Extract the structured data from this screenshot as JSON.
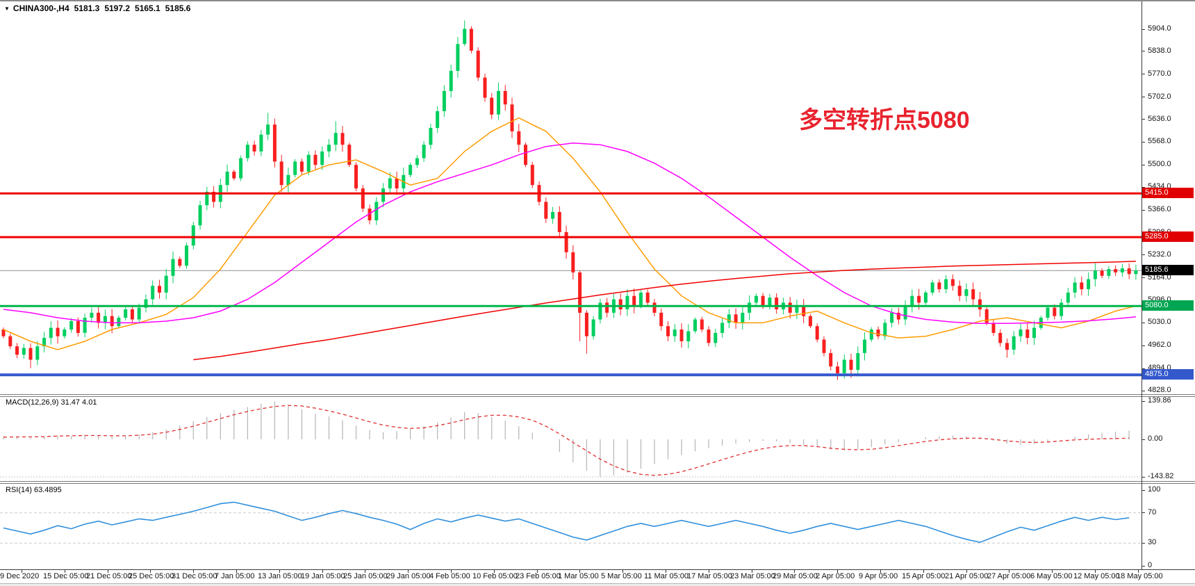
{
  "header": {
    "dropdown_icon": "▼",
    "symbol": "CHINA300-,H4",
    "open": "5181.3",
    "high": "5197.2",
    "low": "5165.1",
    "close": "5185.6"
  },
  "indicators": {
    "macd_label": "MACD(12,26,9) 31.47 4.01",
    "rsi_label": "RSI(14) 63.4895"
  },
  "annotation": {
    "text": "多空转折点5080",
    "color": "#e8232e"
  },
  "badges": [
    {
      "label": "5415.0",
      "price": 5415.0,
      "bg": "#e00000"
    },
    {
      "label": "5285.0",
      "price": 5285.0,
      "bg": "#e00000"
    },
    {
      "label": "5185.6",
      "price": 5185.6,
      "bg": "#000000"
    },
    {
      "label": "5080.0",
      "price": 5080.0,
      "bg": "#00a651"
    },
    {
      "label": "4875.0",
      "price": 4875.0,
      "bg": "#3358cc"
    }
  ],
  "colors": {
    "candle_up": "#00cf5f",
    "candle_down": "#f81f1f",
    "macd_histogram": "#b4b4b4",
    "macd_signal": "#e03030",
    "rsi_line": "#2f8fdd",
    "level_dashed": "#c9c9c9",
    "axis_text": "#111111"
  },
  "chart_data": {
    "type": "candlestick",
    "symbol": "CHINA300-",
    "timeframe": "H4",
    "title_ohlc": [
      5181.3,
      5197.2,
      5165.1,
      5185.6
    ],
    "current_bid": 5185.6,
    "price_axis": {
      "min": 4828,
      "max": 5904,
      "tick_labels": [
        "5904.0",
        "5838.0",
        "5770.0",
        "5702.0",
        "5636.0",
        "5568.0",
        "5500.0",
        "5434.0",
        "5366.0",
        "5298.0",
        "5232.0",
        "5164.0",
        "5096.0",
        "5030.0",
        "4962.0",
        "4894.0",
        "4828.0"
      ]
    },
    "time_axis_labels": [
      "9 Dec 2020",
      "15 Dec 05:00",
      "21 Dec 05:00",
      "25 Dec 05:00",
      "31 Dec 05:00",
      "7 Jan 05:00",
      "13 Jan 05:00",
      "19 Jan 05:00",
      "25 Jan 05:00",
      "29 Jan 05:00",
      "4 Feb 05:00",
      "10 Feb 05:00",
      "23 Feb 05:00",
      "1 Mar 05:00",
      "5 Mar 05:00",
      "11 Mar 05:00",
      "17 Mar 05:00",
      "23 Mar 05:00",
      "29 Mar 05:00",
      "2 Apr 05:00",
      "9 Apr 05:00",
      "15 Apr 05:00",
      "21 Apr 05:00",
      "27 Apr 05:00",
      "6 May 05:00",
      "12 May 05:00",
      "18 May 05:00"
    ],
    "horizontal_lines": [
      {
        "name": "bid-price-line",
        "price": 5185.6,
        "color": "#909090",
        "width": 1,
        "behind": true
      },
      {
        "name": "resistance-line-5415",
        "price": 5415.0,
        "color": "#ef0000",
        "width": 3,
        "behind": false
      },
      {
        "name": "resistance-line-5285",
        "price": 5285.0,
        "color": "#ef0000",
        "width": 3,
        "behind": false
      },
      {
        "name": "pivot-line-5080",
        "price": 5080.0,
        "color": "#00b64a",
        "width": 3,
        "behind": false
      },
      {
        "name": "support-line-4875",
        "price": 4875.0,
        "color": "#3358cc",
        "width": 4,
        "behind": false
      }
    ],
    "candles": {
      "count": 168,
      "first_open": 5010,
      "default_wick": 12,
      "closes": [
        4990,
        4960,
        4935,
        4955,
        4920,
        4960,
        4985,
        5015,
        4990,
        5010,
        5035,
        5000,
        5045,
        5060,
        5030,
        5050,
        5020,
        5045,
        5070,
        5040,
        5075,
        5100,
        5140,
        5120,
        5170,
        5220,
        5200,
        5260,
        5320,
        5380,
        5420,
        5390,
        5440,
        5480,
        5460,
        5520,
        5560,
        5540,
        5590,
        5620,
        5510,
        5440,
        5470,
        5510,
        5480,
        5530,
        5500,
        5540,
        5560,
        5595,
        5560,
        5500,
        5430,
        5370,
        5335,
        5390,
        5430,
        5460,
        5430,
        5470,
        5500,
        5520,
        5560,
        5610,
        5660,
        5720,
        5780,
        5860,
        5905,
        5840,
        5760,
        5700,
        5650,
        5720,
        5680,
        5600,
        5560,
        5500,
        5440,
        5390,
        5340,
        5360,
        5300,
        5240,
        5180,
        5060,
        4990,
        5040,
        5090,
        5060,
        5100,
        5070,
        5110,
        5080,
        5120,
        5090,
        5060,
        5020,
        4990,
        5010,
        4975,
        5005,
        5040,
        5010,
        4970,
        5000,
        5030,
        5055,
        5030,
        5060,
        5090,
        5110,
        5080,
        5105,
        5070,
        5090,
        5060,
        5080,
        5050,
        5020,
        4980,
        4940,
        4900,
        4880,
        4920,
        4890,
        4940,
        4980,
        5010,
        4990,
        5030,
        5060,
        5040,
        5080,
        5110,
        5090,
        5120,
        5150,
        5130,
        5160,
        5140,
        5110,
        5130,
        5100,
        5070,
        5030,
        5000,
        4970,
        4950,
        4990,
        5010,
        4985,
        5015,
        5045,
        5075,
        5050,
        5090,
        5120,
        5150,
        5130,
        5160,
        5185,
        5170,
        5190,
        5180,
        5192,
        5175,
        5186
      ],
      "spike_highs": {
        "39": 5655,
        "49": 5630,
        "68": 5930,
        "73": 5745,
        "165": 5197
      },
      "spike_lows": {
        "4": 4895,
        "85": 4975,
        "86": 4938,
        "123": 4860,
        "125": 4866,
        "148": 4926
      }
    },
    "moving_averages": [
      {
        "name": "ma-fast-orange",
        "color": "#ff9c00",
        "start_index": 0,
        "step": 4,
        "values": [
          5010,
          4975,
          4950,
          4975,
          5010,
          5030,
          5055,
          5105,
          5190,
          5300,
          5410,
          5470,
          5500,
          5515,
          5480,
          5440,
          5460,
          5540,
          5600,
          5640,
          5600,
          5520,
          5420,
          5300,
          5190,
          5110,
          5060,
          5030,
          5030,
          5050,
          5065,
          5030,
          5000,
          4985,
          4990,
          5010,
          5035,
          5045,
          5030,
          5015,
          5035,
          5065,
          5080
        ]
      },
      {
        "name": "ma-mid-magenta",
        "color": "#ff00ff",
        "start_index": 0,
        "step": 4,
        "values": [
          5070,
          5060,
          5045,
          5035,
          5030,
          5030,
          5035,
          5045,
          5065,
          5100,
          5150,
          5210,
          5270,
          5330,
          5380,
          5420,
          5450,
          5475,
          5500,
          5530,
          5555,
          5565,
          5560,
          5540,
          5505,
          5460,
          5405,
          5345,
          5285,
          5225,
          5170,
          5120,
          5080,
          5055,
          5040,
          5032,
          5028,
          5028,
          5030,
          5032,
          5036,
          5042,
          5048
        ]
      },
      {
        "name": "ma-slow-red",
        "color": "#f00000",
        "start_index": 28,
        "step": 4,
        "values": [
          4920,
          4930,
          4942,
          4955,
          4968,
          4980,
          4994,
          5008,
          5022,
          5036,
          5050,
          5063,
          5076,
          5089,
          5101,
          5113,
          5124,
          5135,
          5145,
          5154,
          5162,
          5169,
          5176,
          5181,
          5186,
          5190,
          5193,
          5196,
          5199,
          5201,
          5203,
          5205,
          5207,
          5209,
          5211,
          5213
        ]
      }
    ],
    "macd": {
      "label": "MACD(12,26,9)",
      "main_value": 31.47,
      "signal_value": 4.01,
      "axis_ticks": [
        {
          "label": "139.86",
          "value": 139.86
        },
        {
          "label": "0.00",
          "value": 0
        },
        {
          "label": "-143.82",
          "value": -143.82
        }
      ],
      "bottom_level": -143.82,
      "step": 2,
      "histogram": [
        12,
        8,
        5,
        10,
        14,
        12,
        16,
        14,
        10,
        12,
        18,
        26,
        36,
        50,
        66,
        82,
        96,
        108,
        118,
        130,
        138,
        126,
        110,
        94,
        84,
        70,
        50,
        34,
        26,
        30,
        38,
        48,
        62,
        80,
        100,
        96,
        82,
        68,
        48,
        24,
        0,
        -48,
        -88,
        -120,
        -143,
        -138,
        -128,
        -112,
        -94,
        -76,
        -60,
        -46,
        -34,
        -24,
        -16,
        -10,
        -6,
        -8,
        -14,
        -22,
        -30,
        -38,
        -42,
        -38,
        -30,
        -20,
        -10,
        0,
        8,
        12,
        14,
        10,
        4,
        -6,
        -16,
        -22,
        -18,
        -10,
        0,
        10,
        18,
        24,
        28,
        32
      ],
      "signal": [
        8,
        9,
        9,
        10,
        12,
        13,
        14,
        14,
        13,
        13,
        15,
        19,
        26,
        36,
        48,
        62,
        76,
        90,
        102,
        112,
        120,
        124,
        122,
        114,
        104,
        92,
        78,
        64,
        52,
        44,
        40,
        42,
        50,
        60,
        72,
        82,
        88,
        88,
        82,
        70,
        48,
        20,
        -12,
        -44,
        -76,
        -102,
        -122,
        -134,
        -138,
        -134,
        -124,
        -110,
        -94,
        -78,
        -62,
        -48,
        -36,
        -28,
        -24,
        -24,
        -28,
        -34,
        -38,
        -40,
        -38,
        -32,
        -24,
        -16,
        -8,
        -2,
        2,
        4,
        4,
        0,
        -6,
        -10,
        -12,
        -10,
        -6,
        -2,
        0,
        2,
        3,
        4
      ]
    },
    "rsi": {
      "label": "RSI(14)",
      "current": 63.4895,
      "axis_ticks": [
        {
          "label": "100",
          "value": 100
        },
        {
          "label": "70",
          "value": 70
        },
        {
          "label": "30",
          "value": 30
        },
        {
          "label": "0",
          "value": 0
        }
      ],
      "levels": [
        70,
        30
      ],
      "step": 2,
      "values": [
        50,
        46,
        42,
        47,
        53,
        49,
        55,
        59,
        54,
        58,
        62,
        60,
        64,
        68,
        72,
        77,
        82,
        84,
        80,
        76,
        72,
        66,
        60,
        64,
        69,
        73,
        69,
        64,
        60,
        55,
        48,
        56,
        62,
        58,
        63,
        67,
        63,
        59,
        62,
        56,
        50,
        44,
        38,
        34,
        40,
        46,
        52,
        56,
        52,
        56,
        60,
        56,
        52,
        56,
        60,
        56,
        52,
        47,
        43,
        47,
        52,
        56,
        52,
        48,
        52,
        56,
        60,
        56,
        52,
        46,
        40,
        35,
        31,
        38,
        45,
        51,
        47,
        53,
        59,
        64,
        60,
        64,
        61,
        63.5
      ]
    }
  }
}
